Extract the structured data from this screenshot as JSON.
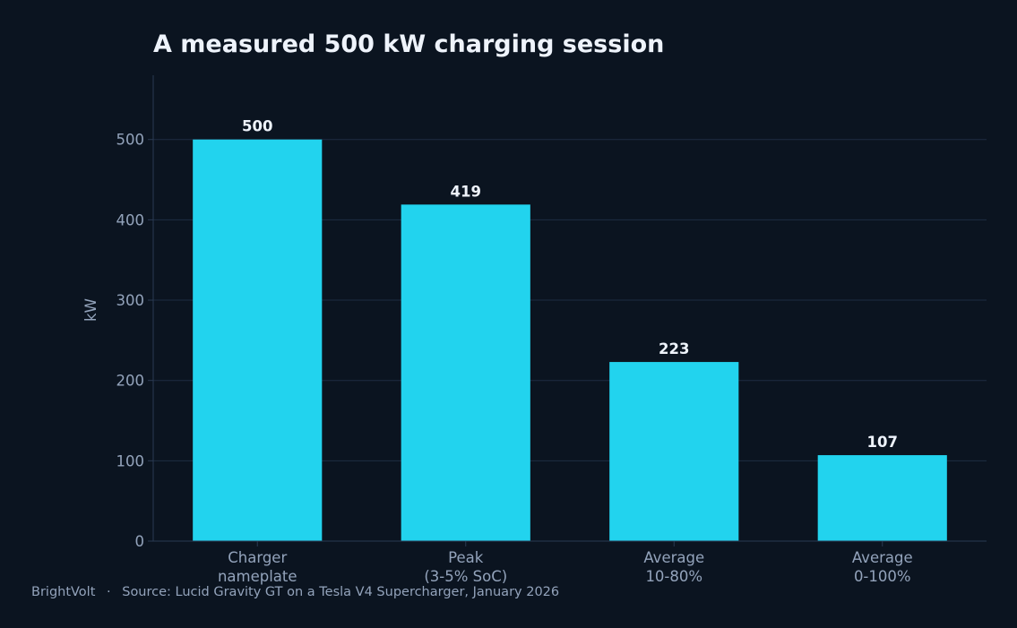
{
  "chart_data": {
    "type": "bar",
    "title": "A measured 500 kW charging session",
    "xlabel": "",
    "ylabel": "kW",
    "ylim": [
      0,
      580
    ],
    "yticks": [
      0,
      100,
      200,
      300,
      400,
      500
    ],
    "grid": true,
    "categories": [
      [
        "Charger",
        "nameplate"
      ],
      [
        "Peak",
        "(3-5% SoC)"
      ],
      [
        "Average",
        "10-80%"
      ],
      [
        "Average",
        "0-100%"
      ]
    ],
    "values": [
      500,
      419,
      223,
      107
    ],
    "data_labels": [
      "500",
      "419",
      "223",
      "107"
    ]
  },
  "footer": {
    "brand": "BrightVolt",
    "separator": "·",
    "source": "Source: Lucid Gravity GT on a Tesla V4 Supercharger, January 2026"
  },
  "colors": {
    "background": "#0b1420",
    "bar": "#22d3ee",
    "grid": "#1e2d42",
    "axis": "#2a3a52",
    "title": "#eef3fb",
    "muted_text": "#93a3bb"
  }
}
